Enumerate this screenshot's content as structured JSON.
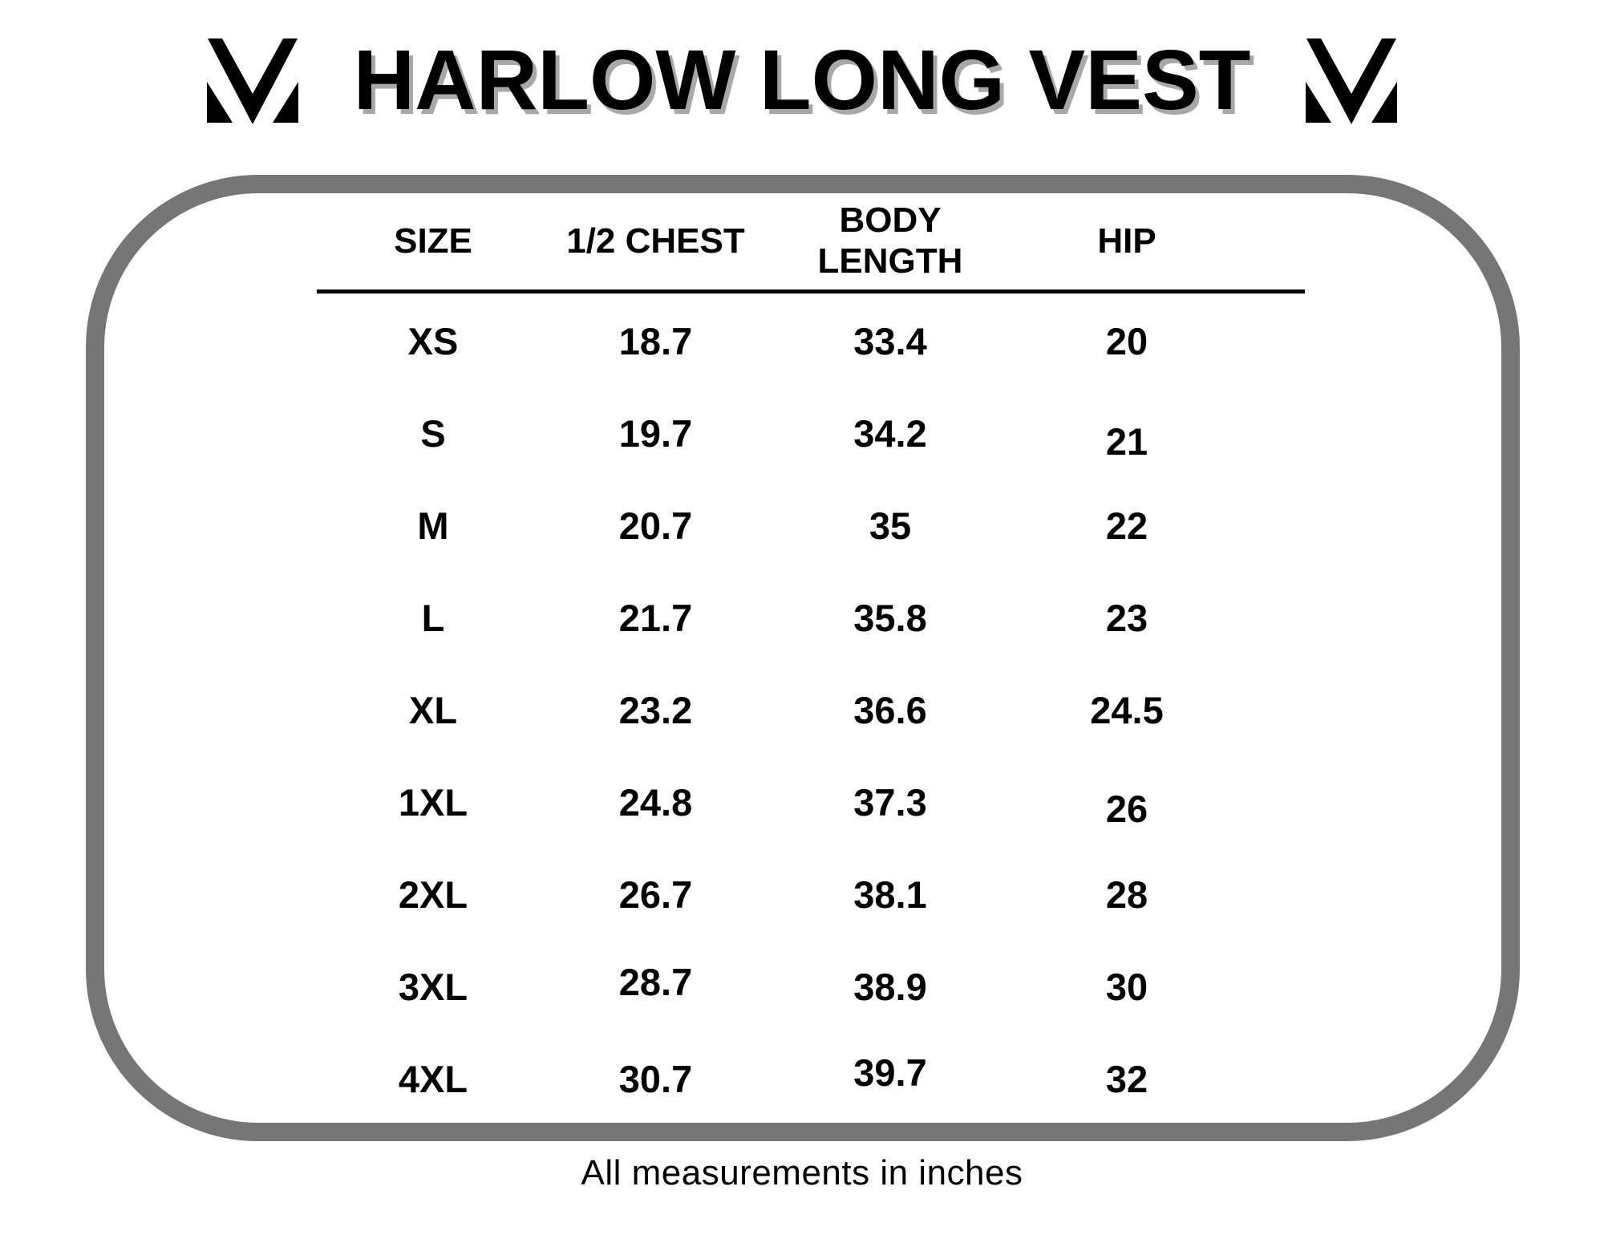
{
  "title": "HARLOW LONG VEST",
  "footnote": "All measurements in inches",
  "logo_icon": "brand-monogram-icon",
  "colors": {
    "background": "#ffffff",
    "text": "#000000",
    "title_shadow": "#a8a8a8",
    "frame_border": "#767676",
    "divider": "#000000"
  },
  "chart_data": {
    "type": "table",
    "title": "HARLOW LONG VEST",
    "columns": [
      "SIZE",
      "1/2 CHEST",
      "BODY LENGTH",
      "HIP"
    ],
    "column_keys": [
      "size",
      "half_chest",
      "body_length",
      "hip"
    ],
    "rows": [
      {
        "size": "XS",
        "half_chest": "18.7",
        "body_length": "33.4",
        "hip": "20"
      },
      {
        "size": "S",
        "half_chest": "19.7",
        "body_length": "34.2",
        "hip": "21"
      },
      {
        "size": "M",
        "half_chest": "20.7",
        "body_length": "35",
        "hip": "22"
      },
      {
        "size": "L",
        "half_chest": "21.7",
        "body_length": "35.8",
        "hip": "23"
      },
      {
        "size": "XL",
        "half_chest": "23.2",
        "body_length": "36.6",
        "hip": "24.5"
      },
      {
        "size": "1XL",
        "half_chest": "24.8",
        "body_length": "37.3",
        "hip": "26"
      },
      {
        "size": "2XL",
        "half_chest": "26.7",
        "body_length": "38.1",
        "hip": "28"
      },
      {
        "size": "3XL",
        "half_chest": "28.7",
        "body_length": "38.9",
        "hip": "30"
      },
      {
        "size": "4XL",
        "half_chest": "30.7",
        "body_length": "39.7",
        "hip": "32"
      }
    ],
    "note": "All measurements in inches",
    "units": "inches",
    "grid": "off",
    "layout": "single centered table inside rounded gray frame"
  }
}
